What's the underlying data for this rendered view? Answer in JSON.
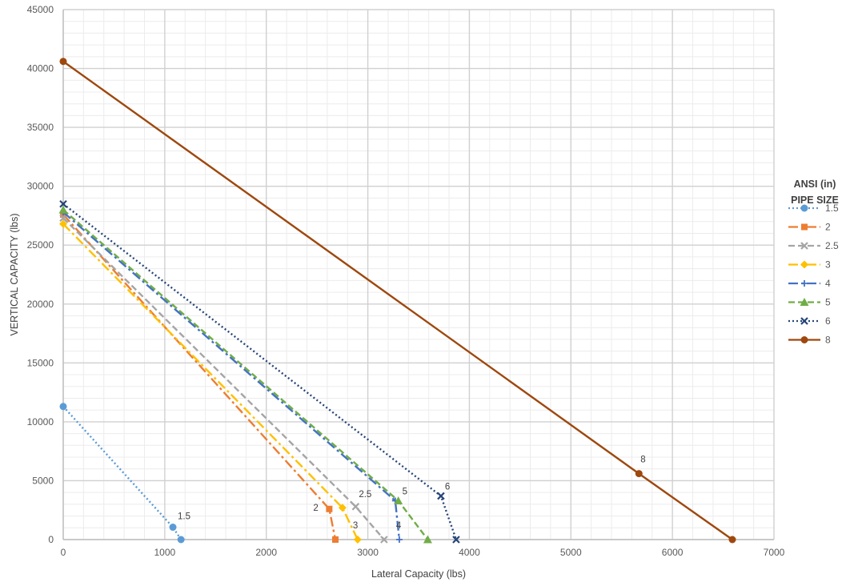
{
  "chart_data": {
    "type": "line",
    "xlabel": "Lateral Capacity (lbs)",
    "ylabel": "VERTICAL CAPACITY (lbs)",
    "xlim": [
      0,
      7000
    ],
    "ylim": [
      0,
      45000
    ],
    "x_ticks": [
      "0",
      "1000",
      "2000",
      "3000",
      "4000",
      "5000",
      "6000",
      "7000"
    ],
    "y_ticks": [
      "0",
      "5000",
      "10000",
      "15000",
      "20000",
      "25000",
      "30000",
      "35000",
      "40000",
      "45000"
    ],
    "grid": true,
    "legend_position": "right",
    "legend_title_lines": [
      "ANSI (in)",
      "PIPE SIZE"
    ],
    "series": [
      {
        "name": "1.5",
        "color": "#5B9BD5",
        "dash": "dotted",
        "marker": "circle",
        "points": [
          [
            0,
            11300
          ],
          [
            1080,
            1050
          ],
          [
            1160,
            0
          ]
        ],
        "end_label": "1.5"
      },
      {
        "name": "2",
        "color": "#ED7D31",
        "dash": "dashdot",
        "marker": "square",
        "points": [
          [
            0,
            27600
          ],
          [
            2620,
            2600
          ],
          [
            2680,
            0
          ]
        ],
        "end_label": "2"
      },
      {
        "name": "2.5",
        "color": "#A5A5A5",
        "dash": "dashed",
        "marker": "x",
        "points": [
          [
            0,
            27300
          ],
          [
            2880,
            2800
          ],
          [
            3160,
            0
          ]
        ],
        "end_label": "2.5"
      },
      {
        "name": "3",
        "color": "#FFC000",
        "dash": "dashdot",
        "marker": "diamond",
        "points": [
          [
            0,
            26800
          ],
          [
            2750,
            2700
          ],
          [
            2900,
            0
          ]
        ],
        "end_label": "3"
      },
      {
        "name": "4",
        "color": "#4472C4",
        "dash": "dashdot",
        "marker": "plus",
        "points": [
          [
            0,
            27800
          ],
          [
            3270,
            3300
          ],
          [
            3310,
            0
          ]
        ],
        "end_label": "4"
      },
      {
        "name": "5",
        "color": "#70AD47",
        "dash": "dashed",
        "marker": "triangle",
        "points": [
          [
            0,
            28000
          ],
          [
            3300,
            3300
          ],
          [
            3590,
            0
          ]
        ],
        "end_label": "5"
      },
      {
        "name": "6",
        "color": "#264478",
        "dash": "dotted",
        "marker": "x",
        "points": [
          [
            0,
            28500
          ],
          [
            3720,
            3700
          ],
          [
            3870,
            0
          ]
        ],
        "end_label": "6"
      },
      {
        "name": "8",
        "color": "#9E480E",
        "dash": "solid",
        "marker": "circle",
        "points": [
          [
            0,
            40600
          ],
          [
            5670,
            5600
          ],
          [
            6590,
            0
          ]
        ],
        "end_label": "8"
      }
    ]
  }
}
